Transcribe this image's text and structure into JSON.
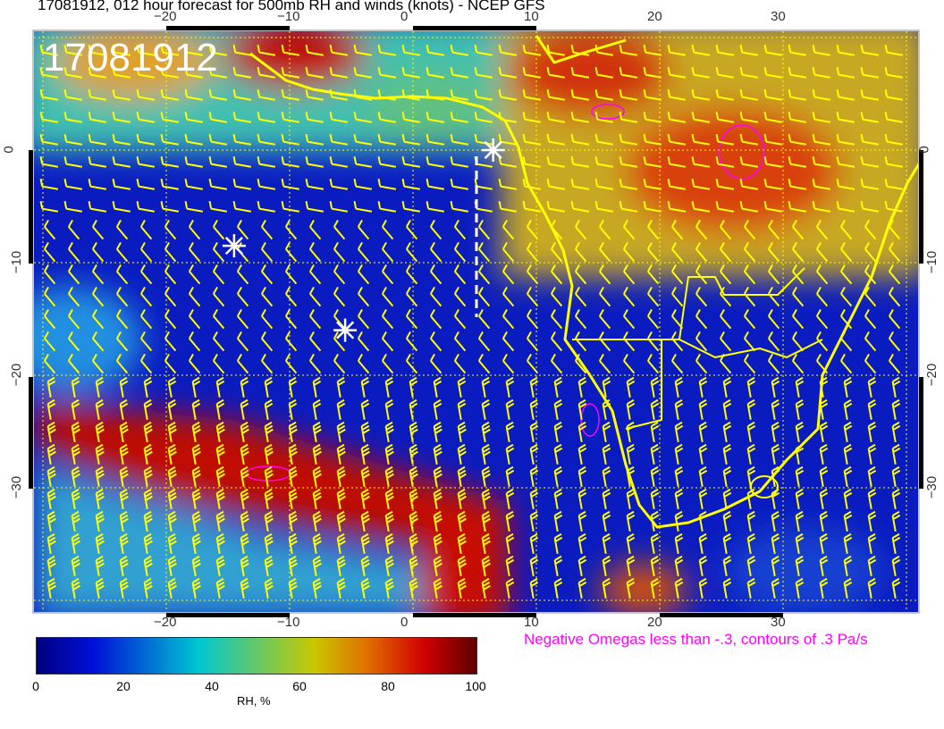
{
  "title": "17081912, 012 hour forecast for 500mb RH and winds (knots) - NCEP GFS",
  "stamp": "17081912",
  "lon_ticks": [
    "−20",
    "−10",
    "0",
    "10",
    "20",
    "30"
  ],
  "lat_ticks": [
    "0",
    "−10",
    "−20",
    "−30"
  ],
  "colorbar": {
    "label": "RH, %",
    "ticks": [
      "0",
      "20",
      "40",
      "60",
      "80",
      "100"
    ],
    "colors": [
      "#000080",
      "#0010d8",
      "#00c8d0",
      "#c8c800",
      "#e07000",
      "#d00000",
      "#600000"
    ]
  },
  "omega_note": "Negative Omegas less than -.3, contours of .3 Pa/s",
  "colors": {
    "barbs": "#ffff00",
    "coast": "#ffff00",
    "omega": "#ff00ff",
    "markers": "#ffffff"
  },
  "markers": [
    {
      "lon": -14.5,
      "lat": -8.5
    },
    {
      "lon": -5.5,
      "lat": -16
    },
    {
      "lon": 6.5,
      "lat": 0
    }
  ]
}
